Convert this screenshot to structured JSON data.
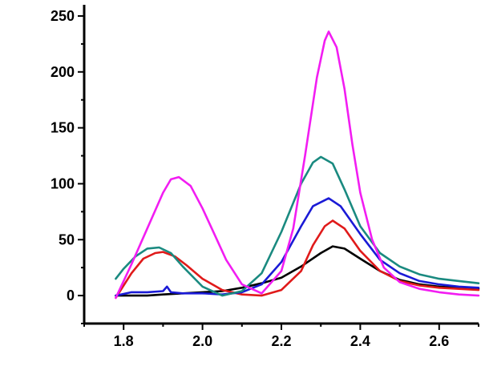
{
  "chart_data": {
    "type": "line",
    "title": "",
    "xlabel": "",
    "ylabel": "",
    "xlim": [
      1.7,
      2.7
    ],
    "ylim": [
      -25,
      260
    ],
    "x_ticks": [
      1.8,
      2.0,
      2.2,
      2.4,
      2.6
    ],
    "x_tick_labels": [
      "1.8",
      "2.0",
      "2.2",
      "2.4",
      "2.6"
    ],
    "y_ticks": [
      0,
      50,
      100,
      150,
      200,
      250
    ],
    "y_tick_labels": [
      "0",
      "50",
      "100",
      "150",
      "200",
      "250"
    ],
    "grid": false,
    "legend": "none",
    "series": [
      {
        "color": "#000000",
        "x": [
          1.78,
          1.82,
          1.86,
          1.9,
          1.95,
          2.0,
          2.05,
          2.1,
          2.15,
          2.2,
          2.25,
          2.3,
          2.33,
          2.36,
          2.4,
          2.45,
          2.5,
          2.55,
          2.6,
          2.65,
          2.7
        ],
        "values": [
          0,
          0,
          0,
          1,
          2,
          3,
          4,
          7,
          11,
          16,
          26,
          38,
          44,
          42,
          33,
          22,
          14,
          10,
          8,
          7,
          6
        ]
      },
      {
        "color": "#e01a1a",
        "x": [
          1.78,
          1.82,
          1.85,
          1.88,
          1.9,
          1.93,
          1.96,
          2.0,
          2.05,
          2.1,
          2.15,
          2.2,
          2.25,
          2.28,
          2.31,
          2.33,
          2.36,
          2.4,
          2.45,
          2.5,
          2.55,
          2.6,
          2.65,
          2.7
        ],
        "values": [
          -2,
          20,
          33,
          38,
          39,
          35,
          27,
          15,
          5,
          1,
          0,
          5,
          22,
          45,
          62,
          67,
          60,
          40,
          22,
          13,
          9,
          7,
          6,
          5
        ]
      },
      {
        "color": "#1a1ad6",
        "x": [
          1.78,
          1.82,
          1.86,
          1.9,
          1.91,
          1.92,
          1.95,
          2.0,
          2.05,
          2.1,
          2.15,
          2.2,
          2.25,
          2.28,
          2.32,
          2.35,
          2.4,
          2.45,
          2.5,
          2.55,
          2.6,
          2.65,
          2.7
        ],
        "values": [
          0,
          3,
          3,
          4,
          8,
          3,
          2,
          2,
          1,
          3,
          10,
          30,
          62,
          80,
          87,
          80,
          55,
          32,
          20,
          13,
          10,
          8,
          7
        ]
      },
      {
        "color": "#1a8a80",
        "x": [
          1.78,
          1.8,
          1.83,
          1.86,
          1.89,
          1.92,
          1.95,
          2.0,
          2.05,
          2.1,
          2.15,
          2.2,
          2.25,
          2.28,
          2.3,
          2.33,
          2.36,
          2.4,
          2.45,
          2.5,
          2.55,
          2.6,
          2.65,
          2.7
        ],
        "values": [
          15,
          24,
          35,
          42,
          43,
          38,
          26,
          8,
          0,
          4,
          20,
          57,
          100,
          119,
          124,
          118,
          95,
          62,
          38,
          26,
          19,
          15,
          13,
          11
        ]
      },
      {
        "color": "#f21df2",
        "x": [
          1.78,
          1.82,
          1.86,
          1.9,
          1.92,
          1.94,
          1.97,
          2.0,
          2.03,
          2.06,
          2.1,
          2.15,
          2.2,
          2.23,
          2.26,
          2.29,
          2.31,
          2.32,
          2.34,
          2.36,
          2.38,
          2.4,
          2.43,
          2.46,
          2.5,
          2.55,
          2.6,
          2.65,
          2.7
        ],
        "values": [
          -2,
          28,
          60,
          92,
          104,
          106,
          98,
          78,
          55,
          32,
          10,
          2,
          22,
          60,
          125,
          195,
          228,
          236,
          222,
          185,
          135,
          92,
          50,
          25,
          12,
          6,
          3,
          1,
          0
        ]
      }
    ]
  }
}
